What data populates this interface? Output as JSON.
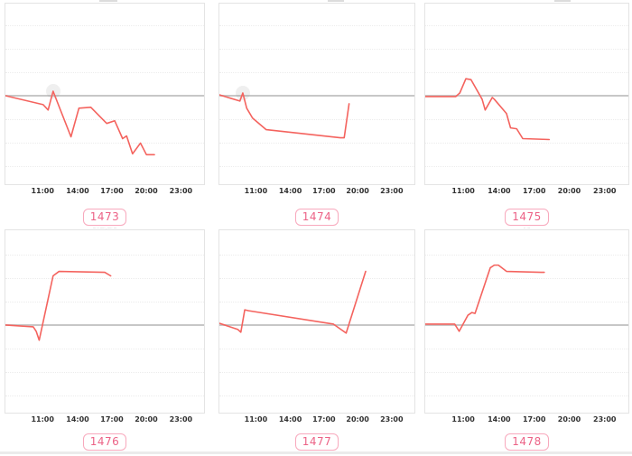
{
  "colors": {
    "series": "#f4635e",
    "baseline": "#c7c7c7",
    "grid": "#ececec",
    "panel_border": "#e4e4e4",
    "badge_border": "#f8a9bd",
    "badge_text": "#ec6286",
    "tick_text": "#303030"
  },
  "x_axis": {
    "ticks": [
      "11:00",
      "14:00",
      "17:00",
      "20:00",
      "23:00"
    ]
  },
  "chart_data": [
    {
      "label": "1473",
      "type": "line",
      "x_ticks": [
        "11:00",
        "14:00",
        "17:00",
        "20:00",
        "23:00"
      ],
      "baseline": 0,
      "y_axis": "unlabeled, values relative to baseline",
      "x_unit": "percent of plot width",
      "points": [
        [
          0,
          -1
        ],
        [
          19,
          -11
        ],
        [
          21.5,
          -17
        ],
        [
          24,
          4
        ],
        [
          33,
          -47
        ],
        [
          37,
          -15
        ],
        [
          43,
          -14
        ],
        [
          51,
          -32
        ],
        [
          55,
          -29
        ],
        [
          59,
          -49
        ],
        [
          61,
          -46
        ],
        [
          64,
          -66
        ],
        [
          68,
          -54
        ],
        [
          71,
          -67
        ],
        [
          75,
          -67
        ]
      ],
      "marker": {
        "x": 24,
        "v": 4
      },
      "caption": "··· ·· ·····, ····· ···"
    },
    {
      "label": "1474",
      "type": "line",
      "x_ticks": [
        "11:00",
        "14:00",
        "17:00",
        "20:00",
        "23:00"
      ],
      "baseline": 0,
      "y_axis": "unlabeled, values relative to baseline",
      "x_unit": "percent of plot width",
      "points": [
        [
          0,
          0
        ],
        [
          10.5,
          -7
        ],
        [
          12,
          2
        ],
        [
          14,
          -15
        ],
        [
          17,
          -26
        ],
        [
          24,
          -39
        ],
        [
          62,
          -48
        ],
        [
          64,
          -48
        ],
        [
          66.5,
          -10
        ]
      ],
      "marker": {
        "x": 12,
        "v": 2
      },
      "caption": ""
    },
    {
      "label": "1475",
      "type": "line",
      "x_ticks": [
        "11:00",
        "14:00",
        "17:00",
        "20:00",
        "23:00"
      ],
      "baseline": 0,
      "y_axis": "unlabeled, values relative to baseline",
      "x_unit": "percent of plot width",
      "points": [
        [
          0,
          -2
        ],
        [
          15,
          -2
        ],
        [
          17,
          2
        ],
        [
          20,
          18
        ],
        [
          22.5,
          17
        ],
        [
          28,
          -5
        ],
        [
          29.5,
          -17
        ],
        [
          33,
          -3
        ],
        [
          34,
          -5
        ],
        [
          40,
          -21
        ],
        [
          42,
          -37
        ],
        [
          45,
          -38
        ],
        [
          48,
          -49
        ],
        [
          61,
          -50
        ]
      ],
      "marker": null,
      "caption": "·· ···"
    },
    {
      "label": "1476",
      "type": "line",
      "x_ticks": [
        "11:00",
        "14:00",
        "17:00",
        "20:00",
        "23:00"
      ],
      "baseline": 0,
      "y_axis": "unlabeled, values relative to baseline",
      "x_unit": "percent of plot width",
      "points": [
        [
          0,
          -1
        ],
        [
          14,
          -3
        ],
        [
          15.5,
          -8
        ],
        [
          17,
          -18
        ],
        [
          24,
          54
        ],
        [
          27,
          59
        ],
        [
          50,
          58
        ],
        [
          53,
          54
        ]
      ],
      "marker": null,
      "caption": ""
    },
    {
      "label": "1477",
      "type": "line",
      "x_ticks": [
        "11:00",
        "14:00",
        "17:00",
        "20:00",
        "23:00"
      ],
      "baseline": 0,
      "y_axis": "unlabeled, values relative to baseline",
      "x_unit": "percent of plot width",
      "points": [
        [
          0,
          1
        ],
        [
          9.5,
          -6
        ],
        [
          11,
          -9
        ],
        [
          13,
          16
        ],
        [
          15,
          15
        ],
        [
          58.5,
          0
        ],
        [
          63,
          -7
        ],
        [
          65,
          -10
        ],
        [
          75,
          59
        ]
      ],
      "marker": null,
      "caption": ""
    },
    {
      "label": "1478",
      "type": "line",
      "x_ticks": [
        "11:00",
        "14:00",
        "17:00",
        "20:00",
        "23:00"
      ],
      "baseline": 0,
      "y_axis": "unlabeled, values relative to baseline",
      "x_unit": "percent of plot width",
      "points": [
        [
          0,
          0
        ],
        [
          14.5,
          0
        ],
        [
          16.7,
          -8
        ],
        [
          21,
          10
        ],
        [
          23,
          13
        ],
        [
          24.5,
          12
        ],
        [
          32,
          63
        ],
        [
          34,
          66
        ],
        [
          36,
          66
        ],
        [
          40,
          59
        ],
        [
          57,
          58
        ],
        [
          58.6,
          58
        ]
      ],
      "marker": null,
      "caption": ""
    }
  ]
}
